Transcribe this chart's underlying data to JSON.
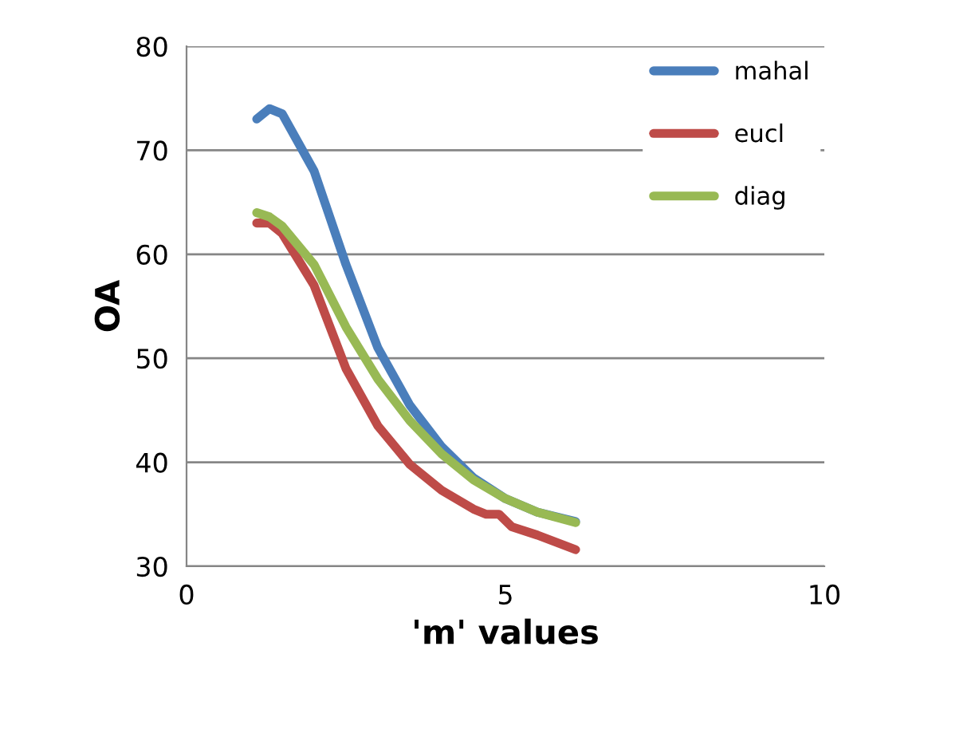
{
  "chart_data": {
    "type": "line",
    "xlabel": "'m' values",
    "ylabel": "OA",
    "xlim": [
      0,
      10
    ],
    "xticks": [
      0,
      5,
      10
    ],
    "ylim": [
      30,
      80
    ],
    "yticks": [
      30,
      40,
      50,
      60,
      70,
      80
    ],
    "grid": "y",
    "legend": "top right",
    "marker": "none",
    "line_style": "solid",
    "series": [
      {
        "name": "mahal",
        "color": "#4a7ebb",
        "x": [
          1.1,
          1.3,
          1.5,
          2,
          2.5,
          3,
          3.5,
          4,
          4.5,
          5,
          5.5,
          6.1
        ],
        "values": [
          73,
          74,
          73.5,
          68,
          59,
          51,
          45.5,
          41.5,
          38.5,
          36.5,
          35.2,
          34.3
        ]
      },
      {
        "name": "eucl",
        "color": "#be4b48",
        "x": [
          1.1,
          1.3,
          1.5,
          2,
          2.5,
          3,
          3.5,
          4,
          4.5,
          4.7,
          4.9,
          5.1,
          5.5,
          6.1
        ],
        "values": [
          63,
          63,
          62,
          57,
          49,
          43.5,
          39.8,
          37.3,
          35.5,
          35,
          35,
          33.8,
          33,
          31.6
        ]
      },
      {
        "name": "diag",
        "color": "#98b954",
        "x": [
          1.1,
          1.3,
          1.5,
          2,
          2.5,
          3,
          3.5,
          4,
          4.5,
          5,
          5.5,
          6.1
        ],
        "values": [
          64,
          63.6,
          62.7,
          59,
          53,
          48,
          44,
          40.8,
          38.3,
          36.5,
          35.2,
          34.2
        ]
      }
    ]
  }
}
